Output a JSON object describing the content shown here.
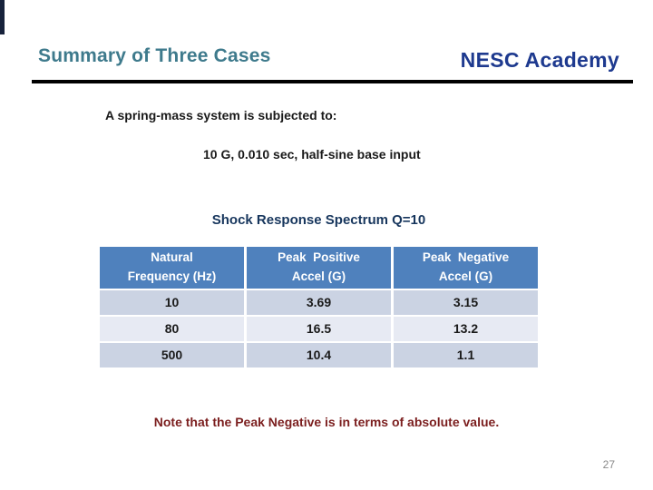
{
  "slide": {
    "header": {
      "title": "Summary of Three Cases",
      "brand": "NESC Academy"
    },
    "body": {
      "line1": "A spring-mass system is subjected to:",
      "line2": "10 G, 0.010 sec, half-sine base input"
    },
    "table_title": "Shock Response Spectrum Q=10",
    "table": {
      "headers": [
        {
          "line1": "Natural",
          "line2": "Frequency (Hz)"
        },
        {
          "line1": "Peak  Positive",
          "line2": "Accel (G)"
        },
        {
          "line1": "Peak  Negative",
          "line2": "Accel (G)"
        }
      ],
      "rows": [
        [
          "10",
          "3.69",
          "3.15"
        ],
        [
          "80",
          "16.5",
          "13.2"
        ],
        [
          "500",
          "10.4",
          "1.1"
        ]
      ]
    },
    "note": "Note that the Peak Negative is in terms of absolute value.",
    "page_number": "27",
    "colors": {
      "title_teal": "#3E7A8C",
      "brand_navy": "#1E3A8F",
      "table_title_navy": "#17365D",
      "table_header_blue": "#4F81BD",
      "row_band_dark": "#CBD3E3",
      "row_band_light": "#E7EAF3",
      "note_red": "#7B1E1E",
      "rule_black": "#000000",
      "page_number_gray": "#8a8a8a"
    }
  }
}
